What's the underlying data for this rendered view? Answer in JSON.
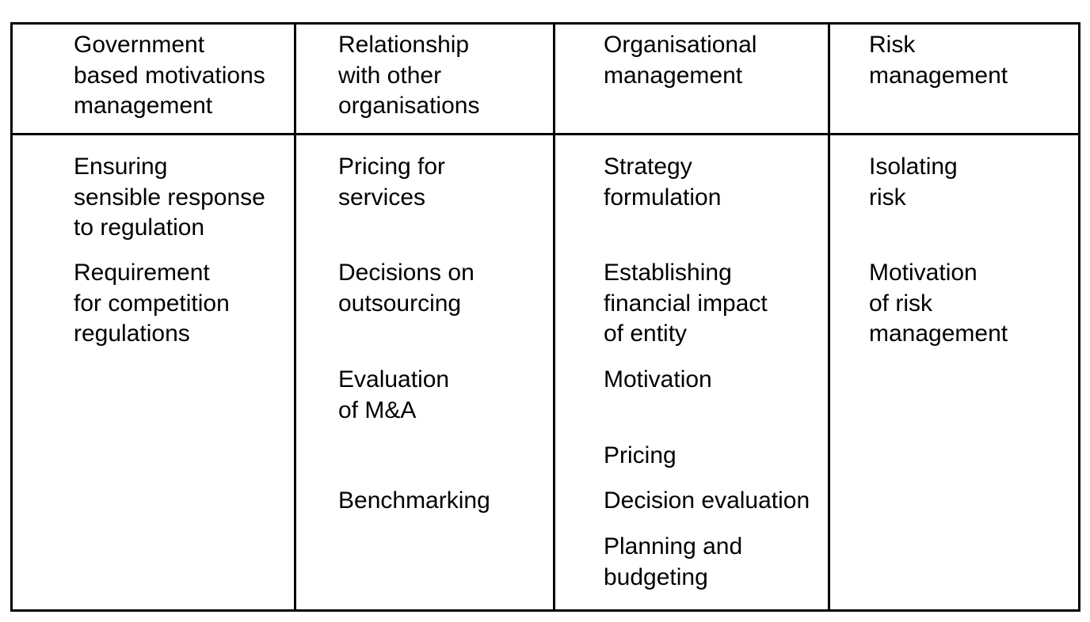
{
  "columns": [
    {
      "header": "Government\nbased motivations\nmanagement",
      "items": [
        "Ensuring\nsensible response\nto regulation",
        "Requirement\nfor competition\nregulations"
      ]
    },
    {
      "header": "Relationship\nwith other\norganisations",
      "items": [
        "Pricing for\nservices",
        "Decisions on\noutsourcing",
        "Evaluation\nof M&A",
        "Benchmarking"
      ]
    },
    {
      "header": "Organisational\nmanagement",
      "items": [
        "Strategy\nformulation",
        "Establishing\nfinancial impact\nof entity",
        "Motivation",
        "Pricing",
        "Decision evaluation",
        "Planning and\nbudgeting"
      ]
    },
    {
      "header": "Risk\nmanagement",
      "items": [
        "Isolating\nrisk",
        "Motivation\nof risk\nmanagement"
      ]
    }
  ]
}
